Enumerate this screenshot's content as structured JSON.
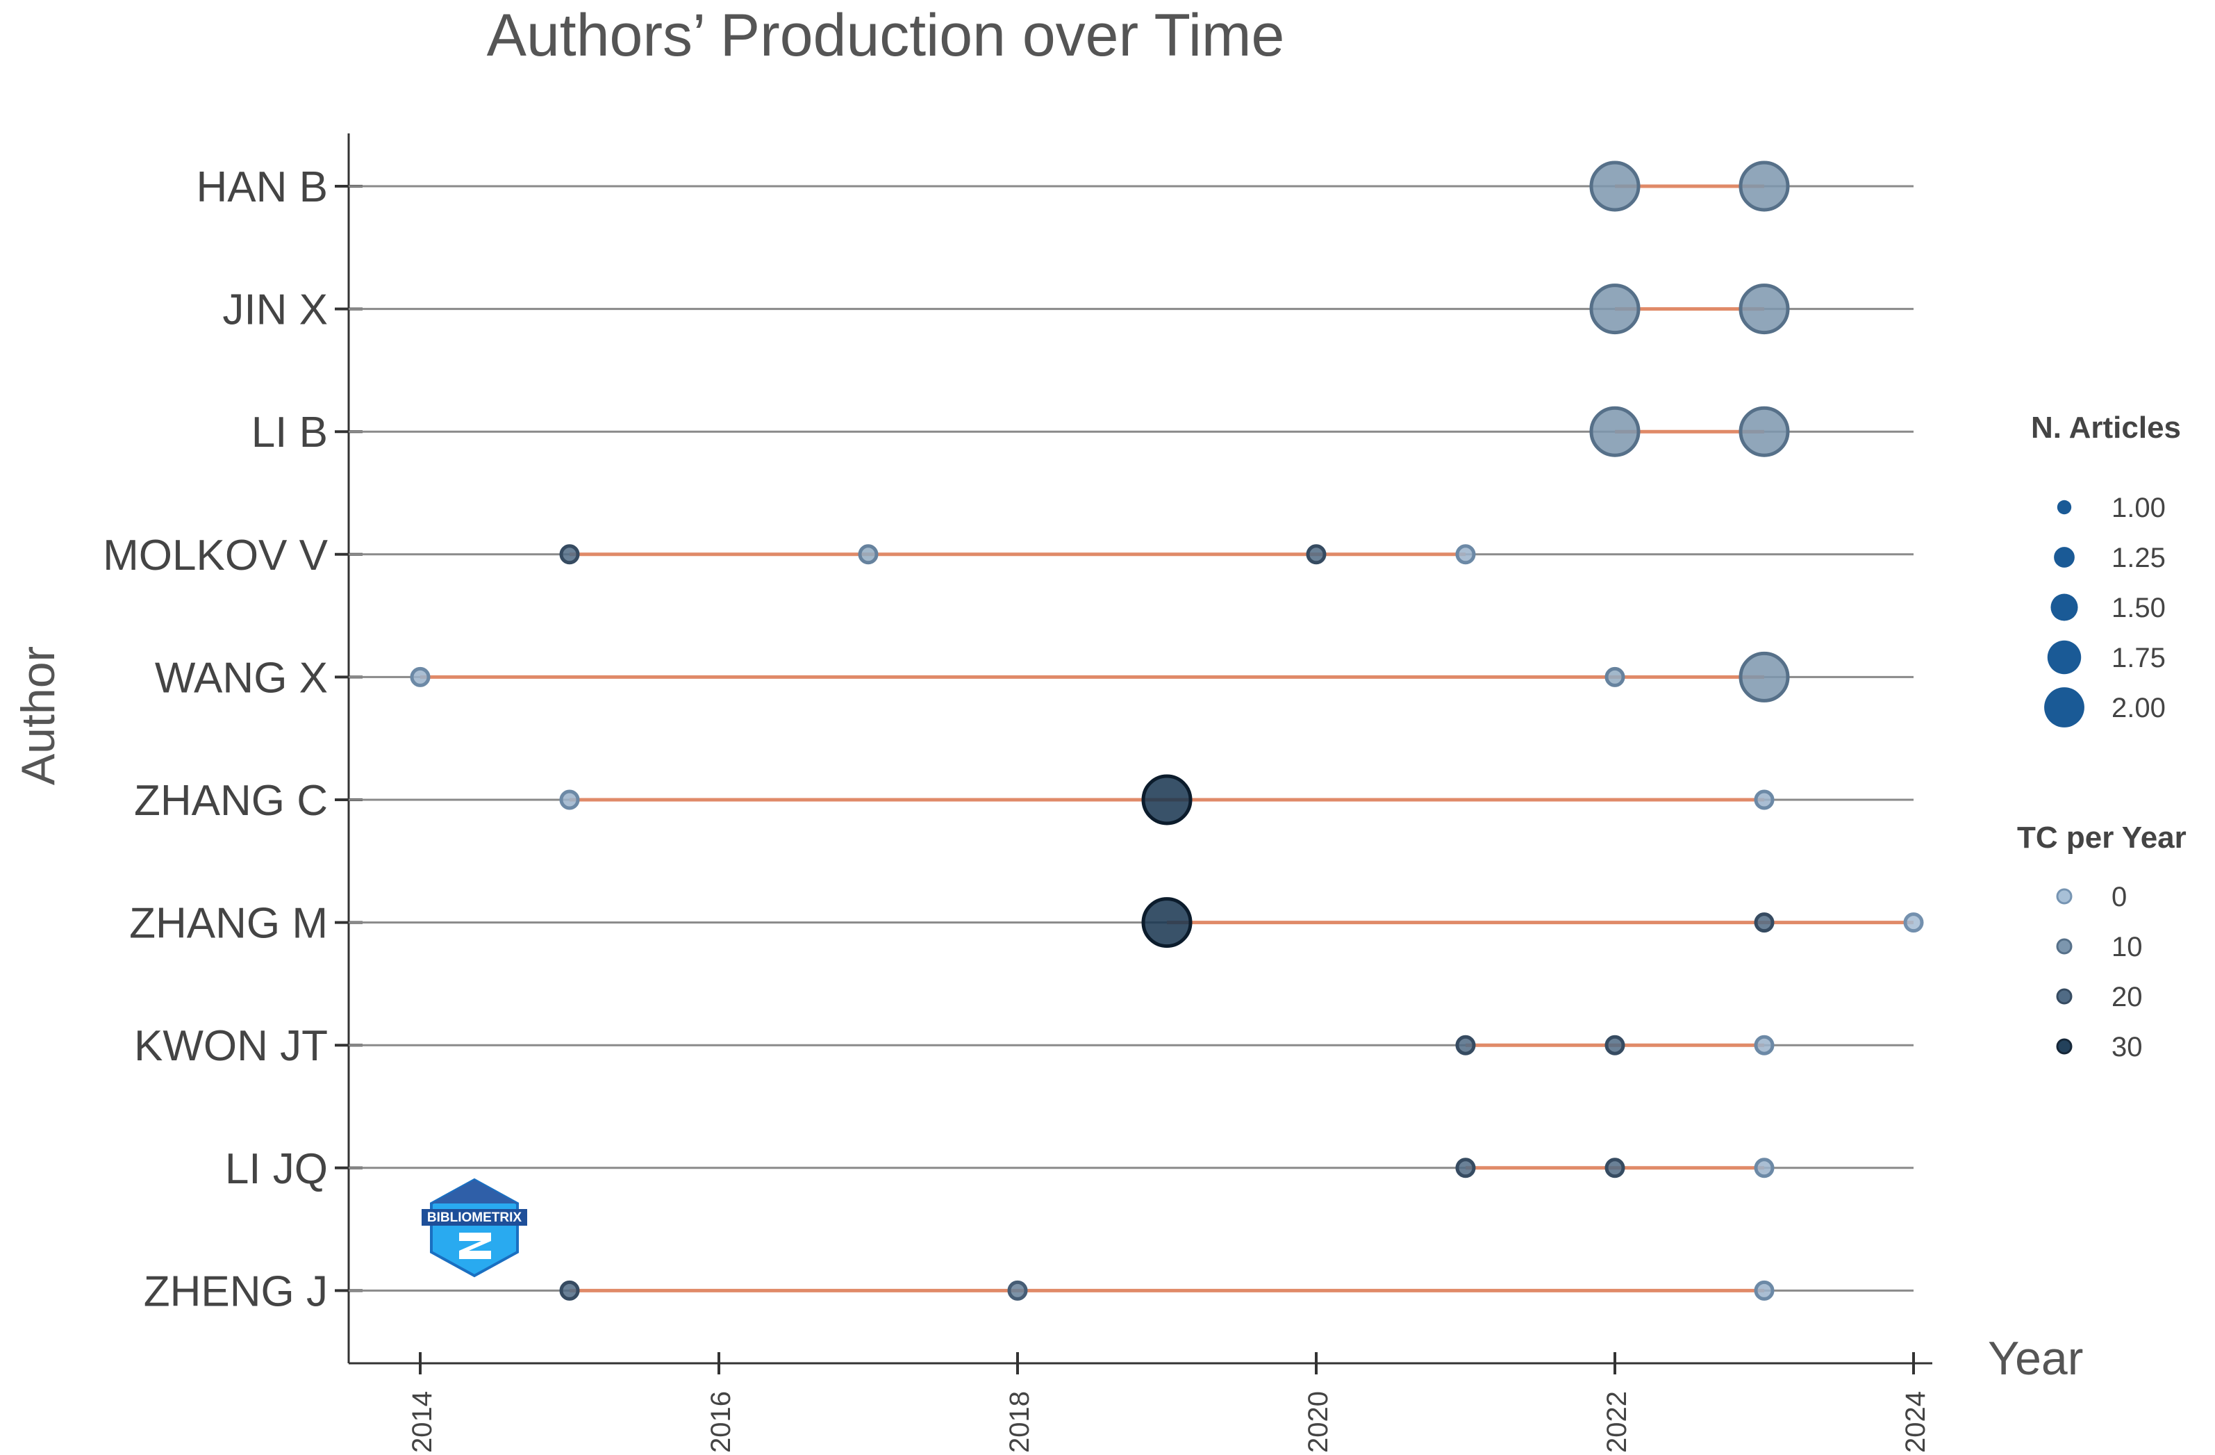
{
  "chart_data": {
    "type": "scatter",
    "title": "Authors’ Production over Time",
    "xlabel": "Year",
    "ylabel": "Author",
    "xlim": [
      2014,
      2024
    ],
    "x_ticks": [
      "2014",
      "2016",
      "2018",
      "2020",
      "2022",
      "2024"
    ],
    "grid": "horizontal lines per author",
    "legend_position": "right",
    "colors": {
      "timeline": "#e08a68",
      "gridline": "#8a8a8a",
      "point_dark": "#16344f",
      "point_light": "#9fb8cf"
    },
    "authors": [
      {
        "name": "HAN B",
        "span": [
          2022,
          2023
        ],
        "points": [
          {
            "year": 2022,
            "articles": 2,
            "tc": 10
          },
          {
            "year": 2023,
            "articles": 2,
            "tc": 10
          }
        ]
      },
      {
        "name": "JIN X",
        "span": [
          2022,
          2023
        ],
        "points": [
          {
            "year": 2022,
            "articles": 2,
            "tc": 10
          },
          {
            "year": 2023,
            "articles": 2,
            "tc": 10
          }
        ]
      },
      {
        "name": "LI B",
        "span": [
          2022,
          2023
        ],
        "points": [
          {
            "year": 2022,
            "articles": 2,
            "tc": 10
          },
          {
            "year": 2023,
            "articles": 2,
            "tc": 10
          }
        ]
      },
      {
        "name": "MOLKOV V",
        "span": [
          2015,
          2021
        ],
        "points": [
          {
            "year": 2015,
            "articles": 1,
            "tc": 20
          },
          {
            "year": 2017,
            "articles": 1,
            "tc": 5
          },
          {
            "year": 2020,
            "articles": 1,
            "tc": 20
          },
          {
            "year": 2021,
            "articles": 1,
            "tc": 3
          }
        ]
      },
      {
        "name": "WANG X",
        "span": [
          2014,
          2023
        ],
        "points": [
          {
            "year": 2014,
            "articles": 1,
            "tc": 3
          },
          {
            "year": 2022,
            "articles": 1,
            "tc": 5
          },
          {
            "year": 2023,
            "articles": 2,
            "tc": 10
          }
        ]
      },
      {
        "name": "ZHANG C",
        "span": [
          2015,
          2023
        ],
        "points": [
          {
            "year": 2015,
            "articles": 1,
            "tc": 3
          },
          {
            "year": 2019,
            "articles": 2,
            "tc": 33
          },
          {
            "year": 2023,
            "articles": 1,
            "tc": 3
          }
        ]
      },
      {
        "name": "ZHANG M",
        "span": [
          2019,
          2024
        ],
        "points": [
          {
            "year": 2019,
            "articles": 2,
            "tc": 33
          },
          {
            "year": 2023,
            "articles": 1,
            "tc": 20
          },
          {
            "year": 2024,
            "articles": 1,
            "tc": 1
          }
        ]
      },
      {
        "name": "KWON JT",
        "span": [
          2021,
          2023
        ],
        "points": [
          {
            "year": 2021,
            "articles": 1,
            "tc": 20
          },
          {
            "year": 2022,
            "articles": 1,
            "tc": 20
          },
          {
            "year": 2023,
            "articles": 1,
            "tc": 3
          }
        ]
      },
      {
        "name": "LI JQ",
        "span": [
          2021,
          2023
        ],
        "points": [
          {
            "year": 2021,
            "articles": 1,
            "tc": 20
          },
          {
            "year": 2022,
            "articles": 1,
            "tc": 20
          },
          {
            "year": 2023,
            "articles": 1,
            "tc": 3
          }
        ]
      },
      {
        "name": "ZHENG J",
        "span": [
          2015,
          2023
        ],
        "points": [
          {
            "year": 2015,
            "articles": 1,
            "tc": 20
          },
          {
            "year": 2018,
            "articles": 1,
            "tc": 15
          },
          {
            "year": 2023,
            "articles": 1,
            "tc": 3
          }
        ]
      }
    ],
    "legend_size": {
      "title": "N. Articles",
      "entries": [
        "1.00",
        "1.25",
        "1.50",
        "1.75",
        "2.00"
      ],
      "values": [
        1,
        1.25,
        1.5,
        1.75,
        2
      ]
    },
    "legend_color": {
      "title": "TC per Year",
      "entries": [
        "0",
        "10",
        "20",
        "30"
      ],
      "values": [
        0,
        10,
        20,
        30
      ]
    },
    "logo": {
      "text": "BIBLIOMETRIX",
      "icon": "bibliometrix-hexagon-logo"
    }
  }
}
